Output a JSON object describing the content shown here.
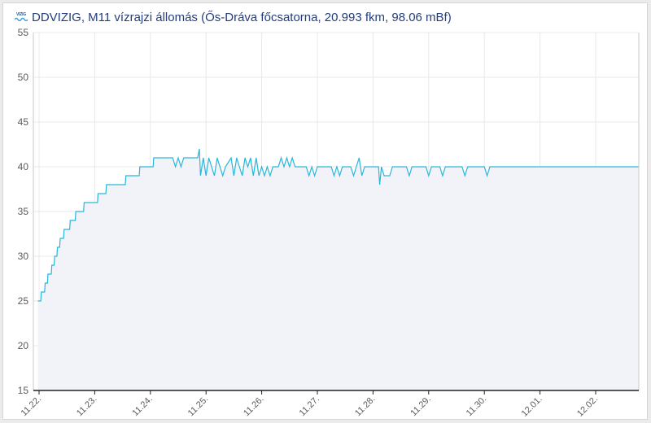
{
  "header": {
    "logo_text": "VIZIG",
    "title": "DDVIZIG, M11 vízrajzi állomás (Ős-Dráva főcsatorna, 20.993 fkm, 98.06 mBf)"
  },
  "colors": {
    "line": "#29b6d9",
    "area": "#f1f3f8",
    "grid": "#e8e8e8",
    "title": "#233e7b"
  },
  "chart_data": {
    "type": "area",
    "title": "",
    "xlabel": "",
    "ylabel": "",
    "ylim": [
      15,
      55
    ],
    "yticks": [
      15,
      20,
      25,
      30,
      35,
      40,
      45,
      50,
      55
    ],
    "xlim": [
      0,
      10.8
    ],
    "xticks": [
      {
        "x": 0,
        "label": "11.22."
      },
      {
        "x": 1,
        "label": "11.23."
      },
      {
        "x": 2,
        "label": "11.24."
      },
      {
        "x": 3,
        "label": "11.25."
      },
      {
        "x": 4,
        "label": "11.26."
      },
      {
        "x": 5,
        "label": "11.27."
      },
      {
        "x": 6,
        "label": "11.28."
      },
      {
        "x": 7,
        "label": "11.29."
      },
      {
        "x": 8,
        "label": "11.30."
      },
      {
        "x": 9,
        "label": "12.01."
      },
      {
        "x": 10,
        "label": "12.02."
      }
    ],
    "grid": true,
    "series": [
      {
        "values": [
          [
            -0.02,
            25
          ],
          [
            0.03,
            25
          ],
          [
            0.04,
            26
          ],
          [
            0.1,
            26
          ],
          [
            0.11,
            27
          ],
          [
            0.15,
            27
          ],
          [
            0.16,
            28
          ],
          [
            0.22,
            28
          ],
          [
            0.23,
            29
          ],
          [
            0.27,
            29
          ],
          [
            0.28,
            30
          ],
          [
            0.32,
            30
          ],
          [
            0.33,
            31
          ],
          [
            0.37,
            31
          ],
          [
            0.38,
            32
          ],
          [
            0.44,
            32
          ],
          [
            0.45,
            33
          ],
          [
            0.55,
            33
          ],
          [
            0.56,
            34
          ],
          [
            0.65,
            34
          ],
          [
            0.66,
            35
          ],
          [
            0.8,
            35
          ],
          [
            0.81,
            36
          ],
          [
            1.05,
            36
          ],
          [
            1.06,
            37
          ],
          [
            1.2,
            37
          ],
          [
            1.21,
            38
          ],
          [
            1.55,
            38
          ],
          [
            1.56,
            39
          ],
          [
            1.8,
            39
          ],
          [
            1.81,
            40
          ],
          [
            2.05,
            40
          ],
          [
            2.06,
            41
          ],
          [
            2.4,
            41
          ],
          [
            2.45,
            40
          ],
          [
            2.5,
            41
          ],
          [
            2.55,
            40
          ],
          [
            2.6,
            41
          ],
          [
            2.85,
            41
          ],
          [
            2.88,
            42
          ],
          [
            2.9,
            39
          ],
          [
            2.95,
            41
          ],
          [
            3.0,
            39
          ],
          [
            3.05,
            41
          ],
          [
            3.1,
            40
          ],
          [
            3.15,
            39
          ],
          [
            3.2,
            41
          ],
          [
            3.25,
            40
          ],
          [
            3.3,
            39
          ],
          [
            3.35,
            40
          ],
          [
            3.45,
            41
          ],
          [
            3.5,
            39
          ],
          [
            3.55,
            41
          ],
          [
            3.6,
            40
          ],
          [
            3.65,
            39
          ],
          [
            3.7,
            41
          ],
          [
            3.75,
            40
          ],
          [
            3.8,
            41
          ],
          [
            3.85,
            39
          ],
          [
            3.9,
            41
          ],
          [
            3.95,
            39
          ],
          [
            4.0,
            40
          ],
          [
            4.05,
            39
          ],
          [
            4.1,
            40
          ],
          [
            4.15,
            39
          ],
          [
            4.2,
            40
          ],
          [
            4.3,
            40
          ],
          [
            4.35,
            41
          ],
          [
            4.4,
            40
          ],
          [
            4.45,
            41
          ],
          [
            4.5,
            40
          ],
          [
            4.55,
            41
          ],
          [
            4.6,
            40
          ],
          [
            4.8,
            40
          ],
          [
            4.85,
            39
          ],
          [
            4.9,
            40
          ],
          [
            4.95,
            39
          ],
          [
            5.0,
            40
          ],
          [
            5.25,
            40
          ],
          [
            5.3,
            39
          ],
          [
            5.35,
            40
          ],
          [
            5.4,
            39
          ],
          [
            5.45,
            40
          ],
          [
            5.6,
            40
          ],
          [
            5.65,
            39
          ],
          [
            5.7,
            40
          ],
          [
            5.75,
            41
          ],
          [
            5.8,
            39
          ],
          [
            5.85,
            40
          ],
          [
            6.1,
            40
          ],
          [
            6.12,
            38
          ],
          [
            6.15,
            40
          ],
          [
            6.2,
            39
          ],
          [
            6.3,
            39
          ],
          [
            6.35,
            40
          ],
          [
            6.6,
            40
          ],
          [
            6.65,
            39
          ],
          [
            6.7,
            40
          ],
          [
            6.95,
            40
          ],
          [
            7.0,
            39
          ],
          [
            7.05,
            40
          ],
          [
            7.2,
            40
          ],
          [
            7.25,
            39
          ],
          [
            7.3,
            40
          ],
          [
            7.6,
            40
          ],
          [
            7.65,
            39
          ],
          [
            7.7,
            40
          ],
          [
            8.0,
            40
          ],
          [
            8.05,
            39
          ],
          [
            8.1,
            40
          ],
          [
            10.8,
            40
          ]
        ]
      }
    ]
  }
}
